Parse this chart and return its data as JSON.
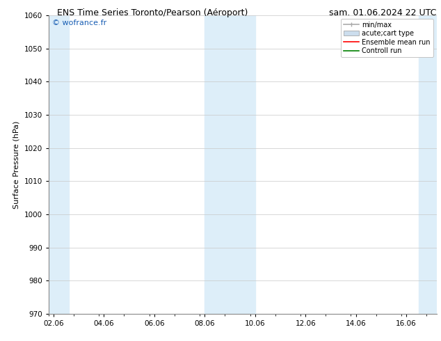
{
  "title_left": "ENS Time Series Toronto/Pearson (Aéroport)",
  "title_right": "sam. 01.06.2024 22 UTC",
  "ylabel": "Surface Pressure (hPa)",
  "watermark": "© wofrance.fr",
  "watermark_color": "#1a5fb4",
  "ylim": [
    970,
    1060
  ],
  "yticks": [
    970,
    980,
    990,
    1000,
    1010,
    1020,
    1030,
    1040,
    1050,
    1060
  ],
  "xtick_labels": [
    "02.06",
    "04.06",
    "06.06",
    "08.06",
    "10.06",
    "12.06",
    "14.06",
    "16.06"
  ],
  "xtick_positions": [
    0,
    2,
    4,
    6,
    8,
    10,
    12,
    14
  ],
  "xlim": [
    -0.2,
    15.2
  ],
  "shaded_bands": [
    {
      "x_start": -0.2,
      "x_end": 0.6
    },
    {
      "x_start": 6.0,
      "x_end": 8.0
    },
    {
      "x_start": 14.5,
      "x_end": 15.2
    }
  ],
  "shade_color": "#ddeef9",
  "background_color": "#ffffff",
  "grid_color": "#c8c8c8",
  "legend_entries": [
    {
      "label": "min/max",
      "color": "#aaaaaa",
      "lw": 1.2,
      "style": "errorbar"
    },
    {
      "label": "acute;cart type",
      "color": "#ccdded",
      "lw": 6,
      "style": "bar"
    },
    {
      "label": "Ensemble mean run",
      "color": "#ff0000",
      "lw": 1.2,
      "style": "line"
    },
    {
      "label": "Controll run",
      "color": "#008000",
      "lw": 1.2,
      "style": "line"
    }
  ],
  "title_fontsize": 9,
  "label_fontsize": 8,
  "tick_fontsize": 7.5,
  "watermark_fontsize": 8
}
